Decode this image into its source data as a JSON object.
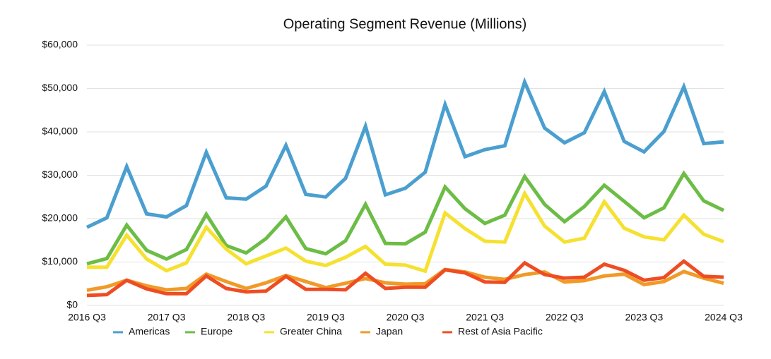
{
  "chart_data": {
    "type": "line",
    "title": "Operating Segment Revenue (Millions)",
    "categories": [
      "2016 Q3",
      null,
      null,
      null,
      "2017 Q3",
      null,
      null,
      null,
      "2018 Q3",
      null,
      null,
      null,
      "2019 Q3",
      null,
      null,
      null,
      "2020 Q3",
      null,
      null,
      null,
      "2021 Q3",
      null,
      null,
      null,
      "2022 Q3",
      null,
      null,
      null,
      "2023 Q3",
      null,
      null,
      null,
      "2024 Q3"
    ],
    "series": [
      {
        "name": "Americas",
        "color": "#4a9fd0",
        "values": [
          18000,
          20200,
          32000,
          21100,
          20400,
          23000,
          35300,
          24800,
          24500,
          27500,
          36900,
          25600,
          25000,
          29300,
          41300,
          25500,
          27000,
          30700,
          46300,
          34300,
          35900,
          36800,
          51500,
          40900,
          37500,
          39800,
          49300,
          37800,
          35400,
          40100,
          50400,
          37300,
          37700
        ]
      },
      {
        "name": "Europe",
        "color": "#6cbd45",
        "values": [
          9600,
          10800,
          18500,
          12700,
          10700,
          12900,
          21000,
          13800,
          12100,
          15400,
          20400,
          13100,
          11900,
          14900,
          23300,
          14300,
          14200,
          16900,
          27300,
          22300,
          18900,
          20800,
          29700,
          23300,
          19300,
          22800,
          27700,
          24000,
          20200,
          22500,
          30400,
          24100,
          21900
        ]
      },
      {
        "name": "Greater China",
        "color": "#f5e130",
        "values": [
          8800,
          8800,
          16200,
          10700,
          8000,
          9800,
          18000,
          13000,
          9600,
          11400,
          13200,
          10200,
          9200,
          11100,
          13600,
          9500,
          9300,
          7900,
          21300,
          17700,
          14800,
          14600,
          25800,
          18300,
          14600,
          15500,
          23900,
          17800,
          15800,
          15100,
          20800,
          16400,
          14700
        ]
      },
      {
        "name": "Japan",
        "color": "#f09a27",
        "values": [
          3500,
          4300,
          5800,
          4500,
          3600,
          3900,
          7200,
          5500,
          3900,
          5200,
          6900,
          5500,
          4100,
          5100,
          6200,
          5200,
          4900,
          5000,
          8300,
          7700,
          6500,
          6000,
          7100,
          7700,
          5400,
          5700,
          6800,
          7200,
          4800,
          5500,
          7800,
          6300,
          5100
        ]
      },
      {
        "name": "Rest of Asia Pacific",
        "color": "#ee4d23",
        "values": [
          2300,
          2500,
          5800,
          3800,
          2700,
          2700,
          6800,
          3900,
          3100,
          3300,
          6700,
          3700,
          3700,
          3600,
          7400,
          3900,
          4200,
          4200,
          8200,
          7500,
          5400,
          5300,
          9800,
          7100,
          6300,
          6500,
          9500,
          8100,
          5800,
          6400,
          10200,
          6700,
          6500
        ]
      }
    ],
    "ylim": [
      0,
      60000
    ],
    "yticks": [
      {
        "value": 0,
        "label": "$0"
      },
      {
        "value": 10000,
        "label": "$10,000"
      },
      {
        "value": 20000,
        "label": "$20,000"
      },
      {
        "value": 30000,
        "label": "$30,000"
      },
      {
        "value": 40000,
        "label": "$40,000"
      },
      {
        "value": 50000,
        "label": "$50,000"
      },
      {
        "value": 60000,
        "label": "$60,000"
      }
    ],
    "grid": true
  }
}
